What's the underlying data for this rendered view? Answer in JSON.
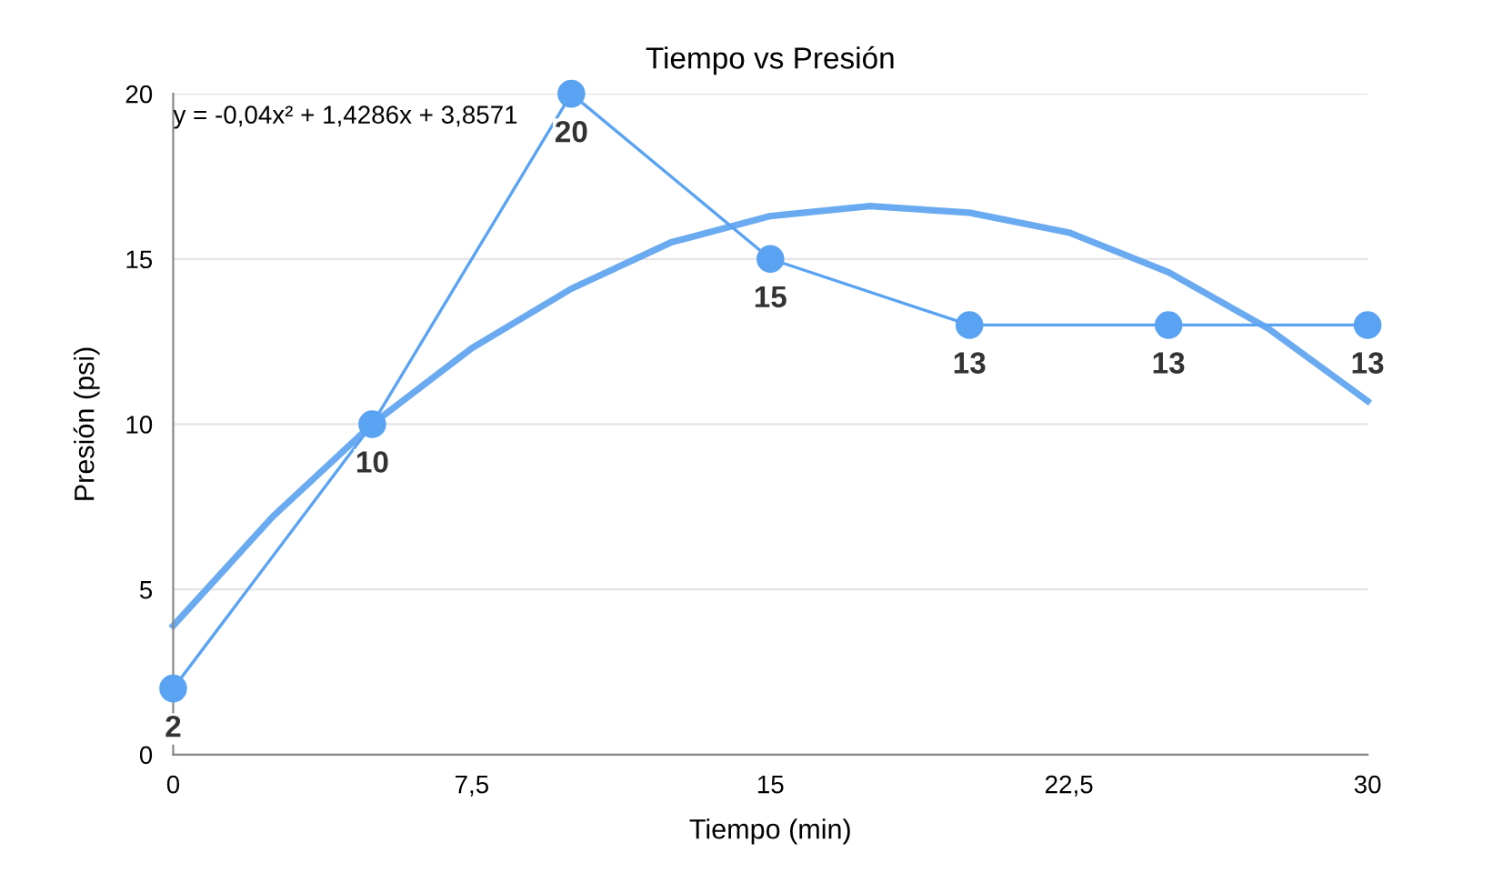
{
  "chart_data": {
    "type": "line",
    "title": "Tiempo vs Presión",
    "xlabel": "Tiempo (min)",
    "ylabel": "Presión (psi)",
    "xlim": [
      0,
      30
    ],
    "ylim": [
      0,
      20
    ],
    "xticks": [
      0,
      {
        "value": 7.5,
        "label": "7,5"
      },
      15,
      {
        "value": 22.5,
        "label": "22,5"
      },
      30
    ],
    "yticks": [
      0,
      5,
      10,
      15,
      20
    ],
    "grid": "y",
    "legend": false,
    "annotations": [
      "y = -0,04x² + 1,4286x + 3,8571"
    ],
    "series": [
      {
        "color": "#5aa3f2",
        "x": [
          0,
          5,
          10,
          15,
          20,
          25,
          30
        ],
        "values": [
          2,
          10,
          20,
          15,
          13,
          13,
          13
        ],
        "marker": "circle",
        "data_labels": true
      },
      {
        "color": "#6aaaf0",
        "x": [
          0,
          2.5,
          5,
          7.5,
          10,
          12.5,
          15,
          17.5,
          20,
          22.5,
          25,
          27.5,
          30
        ],
        "values": [
          3.9,
          7.2,
          10.0,
          12.3,
          14.1,
          15.5,
          16.3,
          16.6,
          16.4,
          15.8,
          14.6,
          12.9,
          10.7
        ],
        "marker": "none"
      }
    ]
  }
}
